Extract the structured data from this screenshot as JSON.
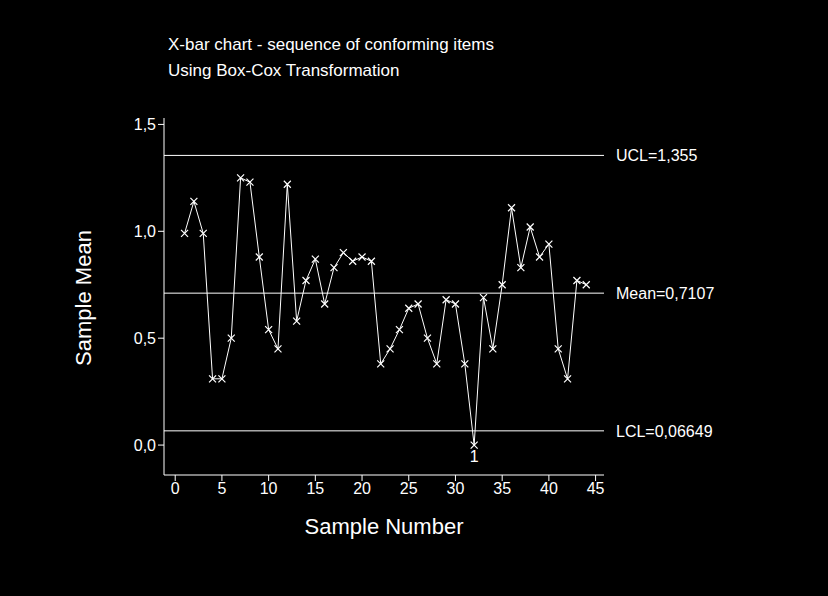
{
  "chart_data": {
    "type": "line",
    "title": "X-bar chart - sequence of conforming items",
    "subtitle": "Using Box-Cox Transformation",
    "x_label": "Sample Number",
    "y_label": "Sample Mean",
    "x": [
      1,
      2,
      3,
      4,
      5,
      6,
      7,
      8,
      9,
      10,
      11,
      12,
      13,
      14,
      15,
      16,
      17,
      18,
      19,
      20,
      21,
      22,
      23,
      24,
      25,
      26,
      27,
      28,
      29,
      30,
      31,
      32,
      33,
      34,
      35,
      36,
      37,
      38,
      39,
      40,
      41,
      42,
      43,
      44
    ],
    "values": [
      0.99,
      1.14,
      0.99,
      0.31,
      0.31,
      0.5,
      1.25,
      1.23,
      0.88,
      0.54,
      0.45,
      1.22,
      0.58,
      0.77,
      0.87,
      0.66,
      0.83,
      0.9,
      0.86,
      0.88,
      0.86,
      0.38,
      0.45,
      0.54,
      0.64,
      0.66,
      0.5,
      0.38,
      0.68,
      0.66,
      0.38,
      0.0,
      0.69,
      0.45,
      0.75,
      1.11,
      0.83,
      1.02,
      0.88,
      0.94,
      0.45,
      0.31,
      0.77,
      0.75
    ],
    "color": "#ffffff",
    "marker": "x",
    "xlim": [
      -1.2,
      45.9
    ],
    "xticks": [
      0,
      5,
      10,
      15,
      20,
      25,
      30,
      35,
      40,
      45
    ],
    "ylim": [
      -0.14,
      1.53
    ],
    "yticks": [
      {
        "value": 0,
        "label": "0,0"
      },
      {
        "value": 0.5,
        "label": "0,5"
      },
      {
        "value": 1,
        "label": "1,0"
      },
      {
        "value": 1.5,
        "label": "1,5"
      }
    ],
    "control_limits": [
      {
        "value": 1.355,
        "label": "UCL=1,355"
      },
      {
        "value": 0.7107,
        "label": "Mean=0,7107"
      },
      {
        "value": 0.06649,
        "label": "LCL=0,06649"
      }
    ],
    "annotations": [
      {
        "x": 32,
        "y": 0,
        "text": "1"
      }
    ]
  }
}
